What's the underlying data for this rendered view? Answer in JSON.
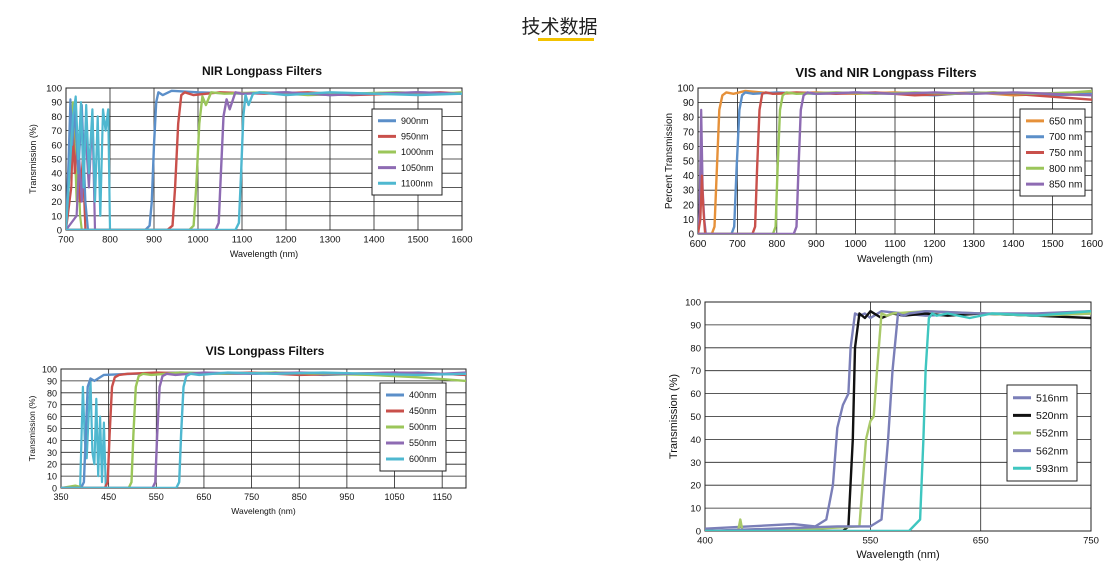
{
  "page": {
    "title": "技术数据"
  },
  "colors": {
    "accent": "#f2c200"
  },
  "chart_data": [
    {
      "id": "nir",
      "type": "line",
      "title": "NIR Longpass Filters",
      "xlabel": "Wavelength (nm)",
      "ylabel": "Transmission (%)",
      "xlim": [
        700,
        1600
      ],
      "ylim": [
        0,
        100
      ],
      "xticks": [
        700,
        800,
        900,
        1000,
        1100,
        1200,
        1300,
        1400,
        1500,
        1600
      ],
      "yticks": [
        0,
        10,
        20,
        30,
        40,
        50,
        60,
        70,
        80,
        90,
        100
      ],
      "grid": true,
      "legend_position": "right",
      "series": [
        {
          "name": "900nm",
          "color": "#5b8fc9",
          "cutoff": 900,
          "x": [
            700,
            880,
            890,
            895,
            900,
            905,
            910,
            920,
            940,
            1000,
            1100,
            1200,
            1300,
            1400,
            1500,
            1600
          ],
          "y": [
            0,
            0,
            3,
            20,
            60,
            90,
            97,
            95,
            98,
            97,
            96,
            97,
            95,
            96,
            97,
            96
          ]
        },
        {
          "name": "950nm",
          "color": "#c9504b",
          "cutoff": 950,
          "x": [
            700,
            930,
            942,
            948,
            955,
            962,
            970,
            990,
            1050,
            1150,
            1250,
            1350,
            1450,
            1550,
            1600
          ],
          "y": [
            0,
            0,
            3,
            30,
            75,
            95,
            97,
            95,
            97,
            96,
            97,
            95,
            96,
            97,
            96
          ]
        },
        {
          "name": "1000nm",
          "color": "#9bc65a",
          "cutoff": 1000,
          "x": [
            700,
            980,
            990,
            996,
            1003,
            1010,
            1018,
            1030,
            1060,
            1150,
            1250,
            1350,
            1450,
            1550,
            1600
          ],
          "y": [
            0,
            0,
            3,
            30,
            75,
            94,
            88,
            97,
            96,
            97,
            95,
            96,
            97,
            96,
            97
          ]
        },
        {
          "name": "1050nm",
          "color": "#8e6bb3",
          "cutoff": 1050,
          "x": [
            700,
            1040,
            1047,
            1052,
            1058,
            1065,
            1072,
            1085,
            1100,
            1200,
            1300,
            1400,
            1500,
            1600
          ],
          "y": [
            0,
            0,
            5,
            40,
            80,
            92,
            85,
            97,
            96,
            97,
            95,
            96,
            97,
            96
          ]
        },
        {
          "name": "1100nm",
          "color": "#4fb8d0",
          "cutoff": 1100,
          "x": [
            700,
            1085,
            1093,
            1098,
            1103,
            1108,
            1115,
            1125,
            1140,
            1200,
            1300,
            1400,
            1500,
            1600
          ],
          "y": [
            0,
            0,
            5,
            40,
            80,
            95,
            88,
            96,
            97,
            95,
            97,
            96,
            95,
            96
          ]
        }
      ],
      "blocking_region": [
        {
          "color": "#9bc65a",
          "x": [
            700,
            708,
            712,
            716,
            720,
            724,
            728,
            732,
            736
          ],
          "y": [
            0,
            40,
            80,
            90,
            60,
            20,
            50,
            10,
            0
          ]
        },
        {
          "color": "#c9504b",
          "x": [
            700,
            712,
            716,
            720,
            726,
            732,
            738,
            744
          ],
          "y": [
            0,
            30,
            70,
            40,
            60,
            20,
            50,
            0
          ]
        },
        {
          "color": "#8e6bb3",
          "x": [
            700,
            724,
            730,
            736,
            744,
            752,
            760,
            766
          ],
          "y": [
            0,
            10,
            50,
            20,
            70,
            30,
            80,
            0
          ]
        },
        {
          "color": "#5b8fc9",
          "x": [
            700,
            706,
            710,
            714,
            720,
            728,
            736,
            744,
            750
          ],
          "y": [
            0,
            50,
            92,
            60,
            85,
            40,
            88,
            20,
            0
          ]
        },
        {
          "color": "#4fb8d0",
          "x": [
            700,
            716,
            722,
            728,
            734,
            740,
            746,
            752,
            760,
            766,
            772,
            778,
            784,
            790,
            796,
            800
          ],
          "y": [
            0,
            80,
            94,
            50,
            90,
            30,
            88,
            40,
            85,
            20,
            80,
            10,
            85,
            70,
            85,
            0
          ]
        }
      ]
    },
    {
      "id": "visnir",
      "type": "line",
      "title": "VIS and NIR Longpass Filters",
      "xlabel": "Wavelength (nm)",
      "ylabel": "Percent Transmission",
      "xlim": [
        600,
        1600
      ],
      "ylim": [
        0,
        100
      ],
      "xticks": [
        600,
        700,
        800,
        900,
        1000,
        1100,
        1200,
        1300,
        1400,
        1500,
        1600
      ],
      "yticks": [
        0,
        10,
        20,
        30,
        40,
        50,
        60,
        70,
        80,
        90,
        100
      ],
      "grid": true,
      "legend_position": "right",
      "series": [
        {
          "name": "650 nm",
          "color": "#e6913a",
          "cutoff": 650,
          "x": [
            600,
            635,
            642,
            648,
            654,
            662,
            672,
            690,
            720,
            800,
            900,
            1000,
            1100,
            1200,
            1300,
            1400,
            1500,
            1600
          ],
          "y": [
            0,
            0,
            5,
            45,
            85,
            95,
            97,
            96,
            98,
            96,
            97,
            96,
            97,
            96,
            97,
            95,
            96,
            97
          ]
        },
        {
          "name": "700 nm",
          "color": "#5b8fc9",
          "cutoff": 700,
          "x": [
            600,
            685,
            692,
            698,
            705,
            712,
            720,
            740,
            800,
            900,
            1000,
            1100,
            1200,
            1300,
            1400,
            1500,
            1600
          ],
          "y": [
            0,
            0,
            5,
            45,
            85,
            95,
            97,
            96,
            97,
            96,
            97,
            96,
            95,
            97,
            96,
            95,
            96
          ]
        },
        {
          "name": "750 nm",
          "color": "#c9504b",
          "cutoff": 750,
          "x": [
            600,
            738,
            745,
            750,
            756,
            763,
            772,
            790,
            850,
            950,
            1050,
            1150,
            1250,
            1350,
            1450,
            1550,
            1600
          ],
          "y": [
            0,
            0,
            5,
            45,
            85,
            96,
            97,
            96,
            97,
            96,
            97,
            95,
            96,
            97,
            95,
            93,
            92
          ]
        },
        {
          "name": "800 nm",
          "color": "#9bc65a",
          "cutoff": 800,
          "x": [
            600,
            790,
            797,
            802,
            808,
            815,
            825,
            850,
            950,
            1050,
            1150,
            1250,
            1350,
            1450,
            1550,
            1600
          ],
          "y": [
            0,
            0,
            5,
            45,
            85,
            95,
            97,
            96,
            97,
            96,
            97,
            96,
            97,
            96,
            97,
            98
          ]
        },
        {
          "name": "850 nm",
          "color": "#8e6bb3",
          "cutoff": 850,
          "x": [
            600,
            843,
            850,
            855,
            861,
            868,
            878,
            900,
            1000,
            1100,
            1200,
            1300,
            1400,
            1500,
            1600
          ],
          "y": [
            0,
            0,
            5,
            45,
            85,
            95,
            97,
            96,
            97,
            96,
            97,
            96,
            97,
            96,
            95
          ]
        }
      ],
      "blocking_region": [
        {
          "color": "#8e6bb3",
          "x": [
            600,
            604,
            608,
            612,
            616,
            620
          ],
          "y": [
            0,
            15,
            85,
            30,
            10,
            0
          ]
        },
        {
          "color": "#c9504b",
          "x": [
            600,
            606,
            610,
            614,
            618
          ],
          "y": [
            0,
            10,
            40,
            15,
            0
          ]
        }
      ]
    },
    {
      "id": "vis",
      "type": "line",
      "title": "VIS Longpass Filters",
      "xlabel": "Wavelength (nm)",
      "ylabel": "Transmission (%)",
      "xlim": [
        350,
        1200
      ],
      "ylim": [
        0,
        100
      ],
      "xticks": [
        350,
        450,
        550,
        650,
        750,
        850,
        950,
        1050,
        1150
      ],
      "yticks": [
        0,
        10,
        20,
        30,
        40,
        50,
        60,
        70,
        80,
        90,
        100
      ],
      "grid": true,
      "legend_position": "right",
      "series": [
        {
          "name": "400nm",
          "color": "#5b8fc9",
          "cutoff": 400,
          "x": [
            350,
            392,
            398,
            402,
            406,
            412,
            420,
            440,
            500,
            600,
            700,
            800,
            900,
            1000,
            1100,
            1200
          ],
          "y": [
            0,
            0,
            5,
            45,
            85,
            92,
            90,
            95,
            96,
            97,
            96,
            97,
            95,
            96,
            97,
            95
          ]
        },
        {
          "name": "450nm",
          "color": "#c9504b",
          "cutoff": 450,
          "x": [
            350,
            442,
            448,
            452,
            457,
            463,
            472,
            490,
            550,
            650,
            750,
            850,
            950,
            1050,
            1150,
            1200
          ],
          "y": [
            0,
            0,
            5,
            45,
            85,
            93,
            95,
            96,
            97,
            96,
            97,
            95,
            96,
            97,
            96,
            95
          ]
        },
        {
          "name": "500nm",
          "color": "#9bc65a",
          "cutoff": 500,
          "x": [
            350,
            492,
            498,
            502,
            507,
            513,
            522,
            540,
            600,
            700,
            800,
            900,
            1000,
            1100,
            1200
          ],
          "y": [
            0,
            0,
            5,
            45,
            85,
            94,
            96,
            95,
            97,
            96,
            97,
            96,
            95,
            93,
            90
          ]
        },
        {
          "name": "550nm",
          "color": "#8e6bb3",
          "cutoff": 550,
          "x": [
            350,
            542,
            548,
            552,
            557,
            563,
            572,
            590,
            650,
            750,
            850,
            950,
            1050,
            1150,
            1200
          ],
          "y": [
            0,
            0,
            5,
            45,
            85,
            94,
            96,
            95,
            97,
            96,
            97,
            96,
            97,
            96,
            97
          ]
        },
        {
          "name": "600nm",
          "color": "#4fb8d0",
          "cutoff": 600,
          "x": [
            350,
            592,
            598,
            602,
            607,
            613,
            622,
            640,
            700,
            800,
            900,
            1000,
            1100,
            1200
          ],
          "y": [
            0,
            0,
            5,
            45,
            85,
            94,
            96,
            95,
            97,
            96,
            97,
            96,
            95,
            96
          ]
        }
      ],
      "blocking_region": [
        {
          "color": "#4fb8d0",
          "x": [
            390,
            396,
            400,
            404,
            408,
            412,
            416,
            420,
            424,
            428,
            432,
            436,
            440,
            444,
            448
          ],
          "y": [
            0,
            85,
            40,
            25,
            60,
            90,
            30,
            20,
            75,
            10,
            60,
            5,
            55,
            0,
            0
          ]
        },
        {
          "color": "#9bc65a",
          "x": [
            350,
            380,
            390,
            395
          ],
          "y": [
            0,
            2,
            1,
            0
          ]
        }
      ]
    },
    {
      "id": "visb",
      "type": "line",
      "title": "",
      "xlabel": "Wavelength (nm)",
      "ylabel": "Transmission (%)",
      "xlim": [
        400,
        750
      ],
      "ylim": [
        0,
        100
      ],
      "xticks": [
        400,
        550,
        650,
        750
      ],
      "yticks": [
        0,
        10,
        20,
        30,
        40,
        50,
        60,
        70,
        80,
        90,
        100
      ],
      "grid": true,
      "legend_position": "right",
      "series": [
        {
          "name": "516nm",
          "color": "#7b7fb8",
          "cutoff": 516,
          "x": [
            400,
            480,
            500,
            510,
            516,
            520,
            525,
            530,
            532,
            536,
            540,
            545,
            550,
            560,
            580,
            600,
            650,
            700,
            750
          ],
          "y": [
            1,
            3,
            2,
            5,
            20,
            45,
            55,
            60,
            80,
            95,
            94,
            95,
            93,
            96,
            95,
            94,
            95,
            94,
            95
          ]
        },
        {
          "name": "520nm",
          "color": "#111111",
          "cutoff": 520,
          "x": [
            400,
            500,
            525,
            530,
            534,
            536,
            540,
            545,
            550,
            560,
            570,
            580,
            600,
            620,
            650,
            700,
            750
          ],
          "y": [
            0,
            0,
            0,
            2,
            40,
            80,
            95,
            93,
            96,
            93,
            95,
            94,
            95,
            94,
            95,
            94,
            93
          ]
        },
        {
          "name": "552nm",
          "color": "#a9c96a",
          "cutoff": 552,
          "x": [
            400,
            430,
            432,
            434,
            500,
            540,
            546,
            550,
            553,
            556,
            560,
            565,
            570,
            600,
            650,
            700,
            750
          ],
          "y": [
            0,
            0,
            5,
            0,
            1,
            2,
            40,
            48,
            50,
            70,
            95,
            94,
            95,
            96,
            95,
            94,
            95
          ]
        },
        {
          "name": "562nm",
          "color": "#7b7fb8",
          "cutoff": 562,
          "x": [
            400,
            520,
            550,
            560,
            566,
            570,
            575,
            580,
            585,
            600,
            650,
            700,
            750
          ],
          "y": [
            0,
            2,
            2,
            5,
            40,
            70,
            95,
            94,
            95,
            96,
            95,
            95,
            96
          ]
        },
        {
          "name": "593nm",
          "color": "#3fc6c0",
          "cutoff": 593,
          "x": [
            400,
            560,
            585,
            595,
            598,
            600,
            603,
            606,
            610,
            620,
            640,
            660,
            700,
            750
          ],
          "y": [
            0,
            0,
            0,
            5,
            40,
            70,
            93,
            95,
            94,
            95,
            93,
            95,
            94,
            96
          ]
        }
      ]
    }
  ]
}
